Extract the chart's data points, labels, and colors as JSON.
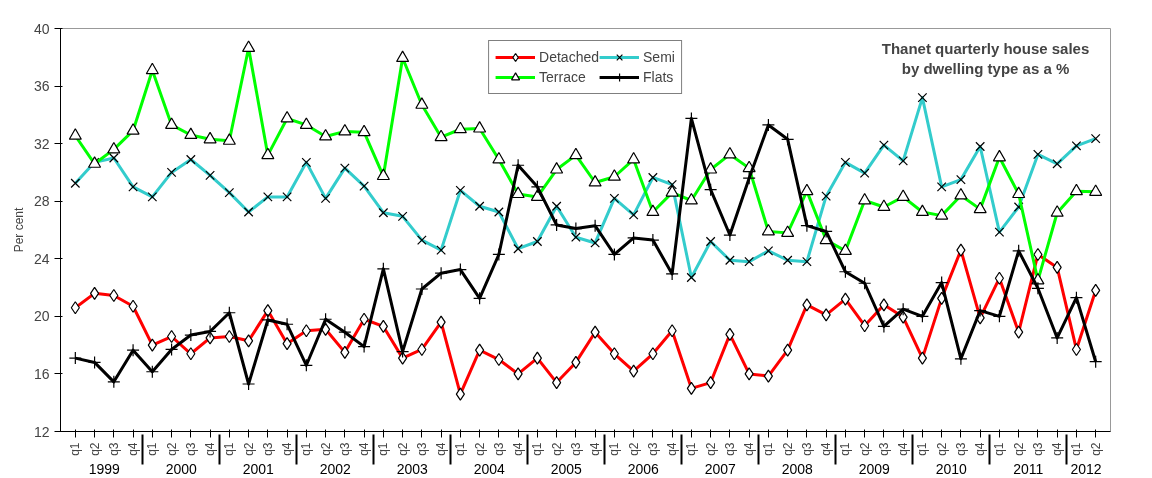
{
  "chart_data": {
    "type": "line",
    "title": "Thanet quarterly house sales\nby dwelling type as a %",
    "ylabel": "Per cent",
    "categories": [
      [
        "1999",
        "q1"
      ],
      [
        null,
        "q2"
      ],
      [
        null,
        "q3"
      ],
      [
        null,
        "q4"
      ],
      [
        "2000",
        "q1"
      ],
      [
        null,
        "q2"
      ],
      [
        null,
        "q3"
      ],
      [
        null,
        "q4"
      ],
      [
        "2001",
        "q1"
      ],
      [
        null,
        "q2"
      ],
      [
        null,
        "q3"
      ],
      [
        null,
        "q4"
      ],
      [
        "2002",
        "q1"
      ],
      [
        null,
        "q2"
      ],
      [
        null,
        "q3"
      ],
      [
        null,
        "q4"
      ],
      [
        "2003",
        "q1"
      ],
      [
        null,
        "q2"
      ],
      [
        null,
        "q3"
      ],
      [
        null,
        "q4"
      ],
      [
        "2004",
        "q1"
      ],
      [
        null,
        "q2"
      ],
      [
        null,
        "q3"
      ],
      [
        null,
        "q4"
      ],
      [
        "2005",
        "q1"
      ],
      [
        null,
        "q2"
      ],
      [
        null,
        "q3"
      ],
      [
        null,
        "q4"
      ],
      [
        "2006",
        "q1"
      ],
      [
        null,
        "q2"
      ],
      [
        null,
        "q3"
      ],
      [
        null,
        "q4"
      ],
      [
        "2007",
        "q1"
      ],
      [
        null,
        "q2"
      ],
      [
        null,
        "q3"
      ],
      [
        null,
        "q4"
      ],
      [
        "2008",
        "q1"
      ],
      [
        null,
        "q2"
      ],
      [
        null,
        "q3"
      ],
      [
        null,
        "q4"
      ],
      [
        "2009",
        "q1"
      ],
      [
        null,
        "q2"
      ],
      [
        null,
        "q3"
      ],
      [
        null,
        "q4"
      ],
      [
        "2010",
        "q1"
      ],
      [
        null,
        "q2"
      ],
      [
        null,
        "q3"
      ],
      [
        null,
        "q4"
      ],
      [
        "2011",
        "q1"
      ],
      [
        null,
        "q2"
      ],
      [
        null,
        "q3"
      ],
      [
        null,
        "q4"
      ],
      [
        "2012",
        "q1"
      ],
      [
        null,
        "q2"
      ]
    ],
    "series": [
      {
        "name": "Detached",
        "color": "#ff0000",
        "marker": "diamond",
        "values": [
          20.6,
          21.6,
          21.45,
          20.7,
          18.0,
          18.6,
          17.4,
          18.5,
          18.6,
          18.3,
          20.4,
          18.1,
          19.0,
          19.1,
          17.5,
          19.8,
          19.3,
          17.1,
          17.7,
          19.6,
          14.6,
          17.65,
          17.0,
          16.0,
          17.1,
          15.4,
          16.8,
          18.9,
          17.4,
          16.2,
          17.4,
          19.0,
          15.0,
          15.4,
          18.75,
          16.0,
          15.85,
          17.65,
          20.8,
          20.1,
          21.2,
          19.35,
          20.8,
          19.95,
          17.1,
          21.25,
          24.6,
          19.9,
          22.65,
          18.9,
          24.3,
          23.4,
          17.7,
          21.8
        ]
      },
      {
        "name": "Semi",
        "color": "#33cccc",
        "marker": "x",
        "values": [
          29.25,
          30.7,
          31.0,
          29.0,
          28.3,
          30.0,
          30.9,
          29.8,
          28.6,
          27.25,
          28.3,
          28.3,
          30.7,
          28.2,
          30.3,
          29.05,
          27.2,
          26.95,
          25.3,
          24.6,
          28.75,
          27.65,
          27.25,
          24.7,
          25.2,
          27.65,
          25.5,
          25.1,
          28.2,
          27.05,
          29.65,
          29.15,
          22.7,
          25.2,
          23.9,
          23.8,
          24.55,
          23.9,
          23.8,
          28.35,
          30.7,
          29.95,
          31.9,
          30.8,
          35.2,
          29.0,
          29.5,
          31.8,
          25.85,
          27.6,
          31.25,
          30.6,
          31.85,
          32.35
        ]
      },
      {
        "name": "Terrace",
        "color": "#00ff00",
        "marker": "triangle",
        "values": [
          32.55,
          30.6,
          31.6,
          32.9,
          37.1,
          33.3,
          32.6,
          32.3,
          32.2,
          38.65,
          31.2,
          33.75,
          33.3,
          32.5,
          32.85,
          32.8,
          29.75,
          37.95,
          34.7,
          32.45,
          33.0,
          33.05,
          30.9,
          28.5,
          28.3,
          30.2,
          31.2,
          29.3,
          29.7,
          30.9,
          27.25,
          28.6,
          28.05,
          30.2,
          31.25,
          30.3,
          25.9,
          25.8,
          28.7,
          25.3,
          24.55,
          28.05,
          27.6,
          28.3,
          27.25,
          27.0,
          28.4,
          27.45,
          31.05,
          28.5,
          22.5,
          27.2,
          28.7,
          28.65
        ]
      },
      {
        "name": "Flats",
        "color": "#000000",
        "marker": "cross",
        "values": [
          17.1,
          16.8,
          15.45,
          17.65,
          16.15,
          17.7,
          18.7,
          18.95,
          20.25,
          15.3,
          19.75,
          19.45,
          16.6,
          19.8,
          18.9,
          17.9,
          23.3,
          17.55,
          21.9,
          23.0,
          23.25,
          21.25,
          24.3,
          30.5,
          29.0,
          26.35,
          26.1,
          26.3,
          24.3,
          25.45,
          25.3,
          22.95,
          33.75,
          28.8,
          25.65,
          29.6,
          33.3,
          32.3,
          26.3,
          25.9,
          23.1,
          22.3,
          19.3,
          20.5,
          20.0,
          22.35,
          17.05,
          20.4,
          20.0,
          24.55,
          21.95,
          18.5,
          21.3,
          16.85
        ]
      }
    ],
    "ylim": [
      12,
      40
    ],
    "yticks": [
      12,
      16,
      20,
      24,
      28,
      32,
      36,
      40
    ],
    "grid": false,
    "legend": "top",
    "line_style": "solid"
  }
}
